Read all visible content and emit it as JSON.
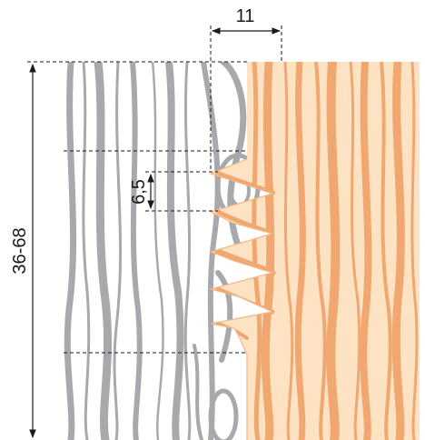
{
  "dimensions": {
    "finger_pitch": "11",
    "finger_spacing": "6,5",
    "board_thickness": "36-68"
  },
  "colors": {
    "gray_wood_grain": "#a7a9ac",
    "pine_light": "#fde2c4",
    "pine_grain": "#f0a870",
    "pine_grain_dark": "#e9935a",
    "line": "#1a1a1a"
  }
}
